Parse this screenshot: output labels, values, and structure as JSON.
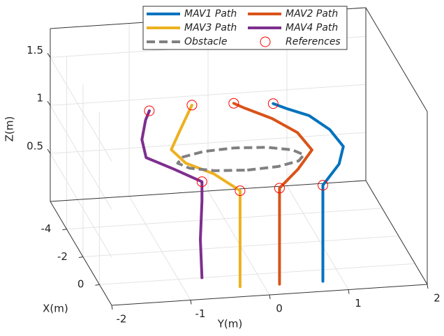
{
  "chart_data": {
    "type": "line3d",
    "x_label": "X(m)",
    "y_label": "Y(m)",
    "z_label": "Z(m)",
    "xlim": [
      -6,
      1.5
    ],
    "ylim": [
      -2,
      2
    ],
    "zlim": [
      0,
      1.8
    ],
    "xticks": [
      -4,
      -2,
      0
    ],
    "yticks": [
      -2,
      -1,
      0,
      1,
      2
    ],
    "zticks": [
      0.5,
      1,
      1.5
    ],
    "grid": true,
    "legend": "top",
    "series": [
      {
        "name": "MAV1 Path",
        "color": "#0072bd",
        "x": [
          0.8,
          0.8,
          0.8,
          -0.6,
          -2,
          -2.7,
          -3.3,
          -4,
          -4.5
        ],
        "y": [
          0.75,
          0.75,
          0.75,
          1.1,
          1.3,
          1.2,
          1.0,
          0.8,
          0.67
        ],
        "z": [
          0,
          0.5,
          1.0,
          1.0,
          0.97,
          1.05,
          1.12,
          1.1,
          1.09
        ]
      },
      {
        "name": "MAV2 Path",
        "color": "#d95319",
        "x": [
          0.8,
          0.8,
          0.8,
          -0.3,
          -1.5,
          -2.3,
          -3,
          -4,
          -4.5
        ],
        "y": [
          0.2,
          0.2,
          0.2,
          0.55,
          0.85,
          0.75,
          0.5,
          0.25,
          0.17
        ],
        "z": [
          0,
          0.5,
          1.0,
          1.02,
          1.03,
          1.1,
          1.16,
          1.14,
          1.12
        ]
      },
      {
        "name": "MAV3 Path",
        "color": "#edb120",
        "x": [
          0.8,
          0.8,
          0.8,
          -0.5,
          -1.5,
          -2.5,
          -3.5,
          -4.5
        ],
        "y": [
          -0.3,
          -0.3,
          -0.3,
          -0.5,
          -0.75,
          -0.83,
          -0.6,
          -0.36
        ],
        "z": [
          0,
          0.5,
          1.0,
          1.0,
          0.98,
          0.98,
          1.05,
          1.13
        ]
      },
      {
        "name": "MAV4 Path",
        "color": "#7e2f8e",
        "x": [
          0,
          0,
          0,
          0,
          -1,
          -2,
          -3,
          -4,
          -4.5
        ],
        "y": [
          -0.7,
          -0.72,
          -0.7,
          -0.7,
          -0.95,
          -1.2,
          -1.15,
          -1.0,
          -0.9
        ],
        "z": [
          0,
          0.4,
          0.8,
          1.0,
          1.0,
          0.99,
          1.03,
          1.08,
          1.1
        ]
      },
      {
        "name": "Obstacle",
        "color": "#808080",
        "style": "dashed",
        "x": [
          -1.2,
          -1.307,
          -1.6,
          -2,
          -2.4,
          -2.693,
          -2.8,
          -2.693,
          -2.4,
          -2,
          -1.6,
          -1.307,
          -1.2
        ],
        "y": [
          0,
          0.4,
          0.693,
          0.8,
          0.693,
          0.4,
          0,
          -0.4,
          -0.693,
          -0.8,
          -0.693,
          -0.4,
          0
        ],
        "z": [
          0.91,
          0.91,
          0.91,
          0.91,
          0.91,
          0.91,
          0.91,
          0.91,
          0.91,
          0.91,
          0.91,
          0.91,
          0.91
        ]
      },
      {
        "name": "References",
        "color": "#ff0000",
        "style": "circle",
        "x": [
          0,
          0.8,
          0.8,
          0.8,
          -4.5,
          -4.5,
          -4.5,
          -4.5
        ],
        "y": [
          -0.7,
          -0.3,
          0.2,
          0.75,
          -0.9,
          -0.36,
          0.17,
          0.67
        ],
        "z": [
          1.0,
          1.0,
          1.0,
          1.0,
          1.1,
          1.13,
          1.12,
          1.09
        ]
      }
    ]
  }
}
